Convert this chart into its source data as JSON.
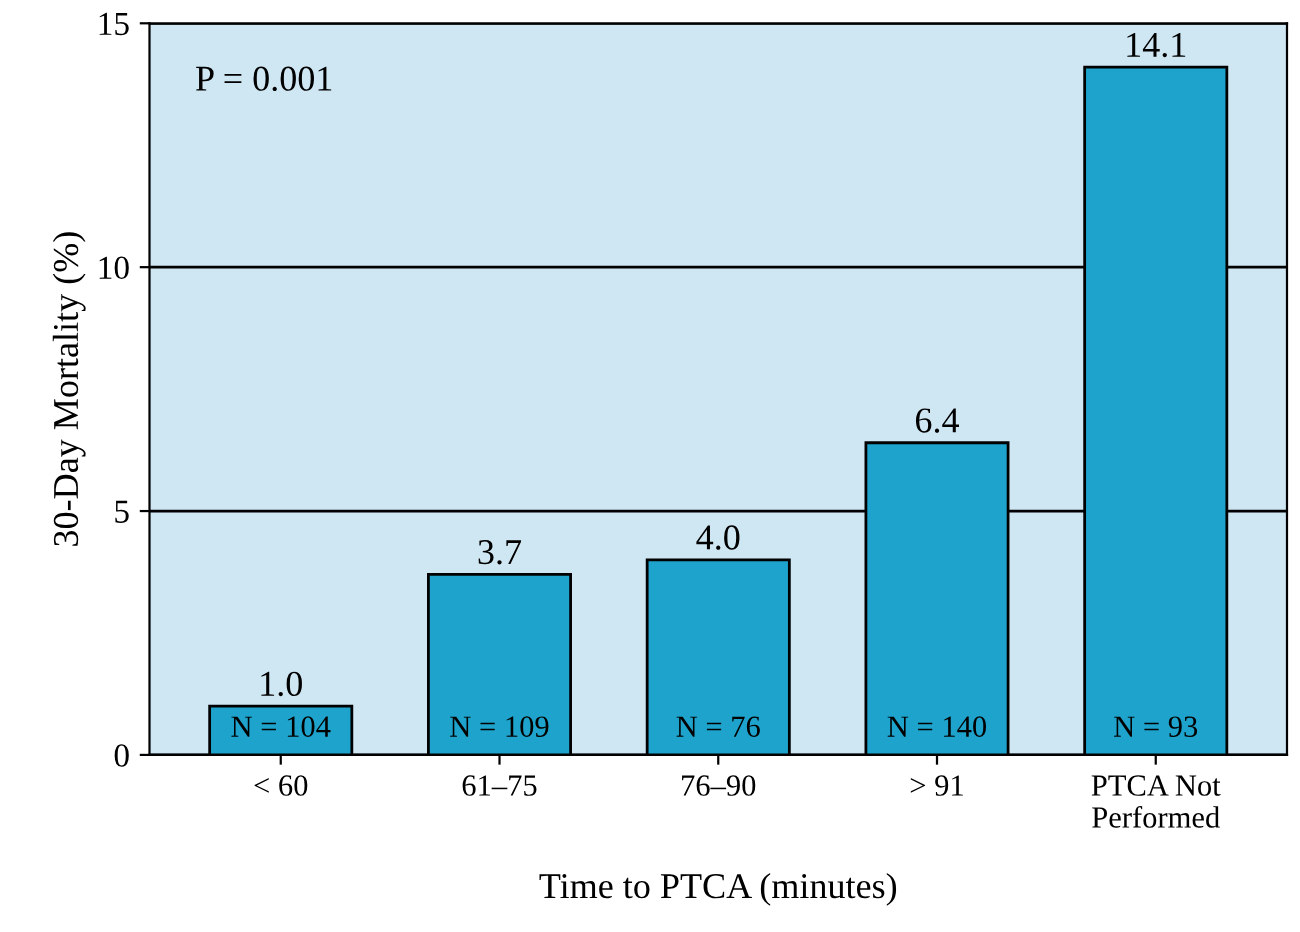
{
  "chart_data": {
    "type": "bar",
    "xlabel": "Time to PTCA (minutes)",
    "ylabel": "30-Day Mortality (%)",
    "categories": [
      "< 60",
      "61–75",
      "76–90",
      "> 91",
      "PTCA Not\nPerformed"
    ],
    "values": [
      1.0,
      3.7,
      4.0,
      6.4,
      14.1
    ],
    "value_labels": [
      "1.0",
      "3.7",
      "4.0",
      "6.4",
      "14.1"
    ],
    "color": "#1ea4cc",
    "ylim": [
      0,
      15
    ],
    "yticks": [
      0,
      5,
      10,
      15
    ],
    "grid": "y",
    "annotations": [
      "P = 0.001",
      "N = 104",
      "N = 109",
      "N = 76",
      "N = 140",
      "N = 93"
    ]
  }
}
